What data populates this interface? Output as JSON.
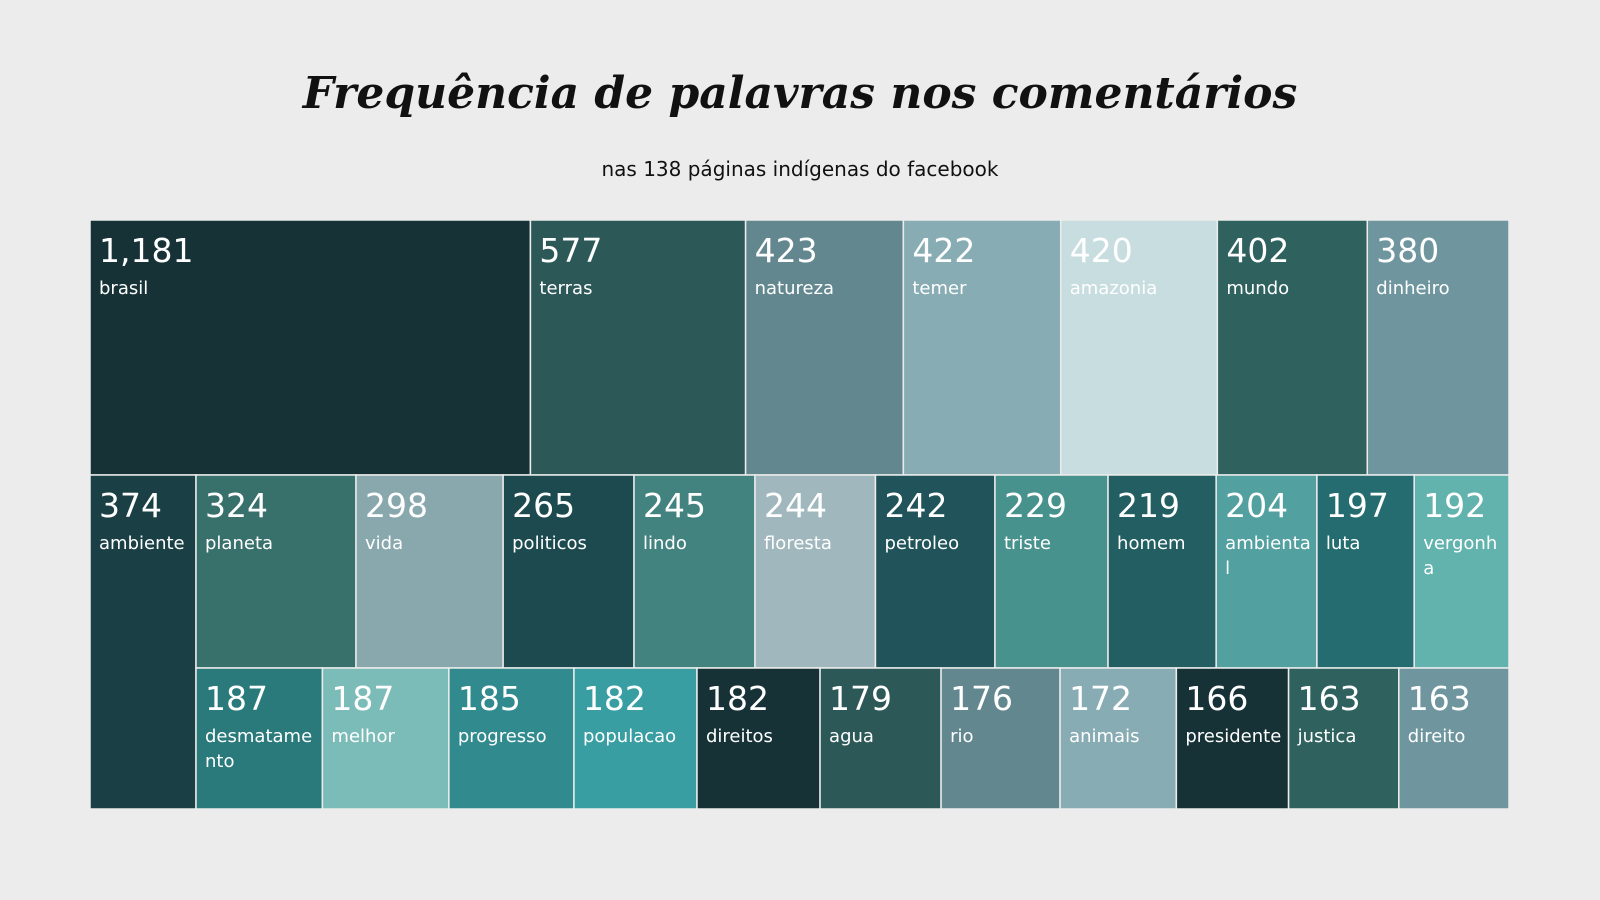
{
  "title": "Frequência de palavras nos comentários",
  "subtitle": "nas 138 páginas indígenas do facebook",
  "chart_data": {
    "type": "treemap",
    "title": "Frequência de palavras nos comentários",
    "subtitle": "nas 138 páginas indígenas do facebook",
    "items": [
      {
        "word": "brasil",
        "value": 1181,
        "value_label": "1,181",
        "lines": [
          "brasil"
        ],
        "color": "#163236"
      },
      {
        "word": "terras",
        "value": 577,
        "value_label": "577",
        "lines": [
          "terras"
        ],
        "color": "#2c5858"
      },
      {
        "word": "natureza",
        "value": 423,
        "value_label": "423",
        "lines": [
          "natureza"
        ],
        "color": "#62878f"
      },
      {
        "word": "temer",
        "value": 422,
        "value_label": "422",
        "lines": [
          "temer"
        ],
        "color": "#88acb4"
      },
      {
        "word": "amazonia",
        "value": 420,
        "value_label": "420",
        "lines": [
          "amazonia"
        ],
        "color": "#c8dde0"
      },
      {
        "word": "mundo",
        "value": 402,
        "value_label": "402",
        "lines": [
          "mundo"
        ],
        "color": "#2f625f"
      },
      {
        "word": "dinheiro",
        "value": 380,
        "value_label": "380",
        "lines": [
          "dinheiro"
        ],
        "color": "#6f969e"
      },
      {
        "word": "ambiente",
        "value": 374,
        "value_label": "374",
        "lines": [
          "ambiente"
        ],
        "color": "#1a4045"
      },
      {
        "word": "planeta",
        "value": 324,
        "value_label": "324",
        "lines": [
          "planeta"
        ],
        "color": "#38706c"
      },
      {
        "word": "vida",
        "value": 298,
        "value_label": "298",
        "lines": [
          "vida"
        ],
        "color": "#88a8ae"
      },
      {
        "word": "politicos",
        "value": 265,
        "value_label": "265",
        "lines": [
          "politicos"
        ],
        "color": "#1c4a4f"
      },
      {
        "word": "lindo",
        "value": 245,
        "value_label": "245",
        "lines": [
          "lindo"
        ],
        "color": "#42827f"
      },
      {
        "word": "floresta",
        "value": 244,
        "value_label": "244",
        "lines": [
          "floresta"
        ],
        "color": "#a0b8bd"
      },
      {
        "word": "petroleo",
        "value": 242,
        "value_label": "242",
        "lines": [
          "petroleo"
        ],
        "color": "#20545a"
      },
      {
        "word": "triste",
        "value": 229,
        "value_label": "229",
        "lines": [
          "triste"
        ],
        "color": "#48928d"
      },
      {
        "word": "homem",
        "value": 219,
        "value_label": "219",
        "lines": [
          "homem"
        ],
        "color": "#225e62"
      },
      {
        "word": "ambiental",
        "value": 204,
        "value_label": "204",
        "lines": [
          "ambienta",
          "l"
        ],
        "color": "#52a0a0"
      },
      {
        "word": "luta",
        "value": 197,
        "value_label": "197",
        "lines": [
          "luta"
        ],
        "color": "#246c70"
      },
      {
        "word": "vergonha",
        "value": 192,
        "value_label": "192",
        "lines": [
          "vergonh",
          "a"
        ],
        "color": "#62b2ae"
      },
      {
        "word": "desmatamento",
        "value": 187,
        "value_label": "187",
        "lines": [
          "desmatame",
          "nto"
        ],
        "color": "#2a7a7c"
      },
      {
        "word": "melhor",
        "value": 187,
        "value_label": "187",
        "lines": [
          "melhor"
        ],
        "color": "#7cbcb8"
      },
      {
        "word": "progresso",
        "value": 185,
        "value_label": "185",
        "lines": [
          "progresso"
        ],
        "color": "#318a8e"
      },
      {
        "word": "populacao",
        "value": 182,
        "value_label": "182",
        "lines": [
          "populacao"
        ],
        "color": "#389ea2"
      },
      {
        "word": "direitos",
        "value": 182,
        "value_label": "182",
        "lines": [
          "direitos"
        ],
        "color": "#163236"
      },
      {
        "word": "agua",
        "value": 179,
        "value_label": "179",
        "lines": [
          "agua"
        ],
        "color": "#2c5858"
      },
      {
        "word": "rio",
        "value": 176,
        "value_label": "176",
        "lines": [
          "rio"
        ],
        "color": "#62878f"
      },
      {
        "word": "animais",
        "value": 172,
        "value_label": "172",
        "lines": [
          "animais"
        ],
        "color": "#88acb4"
      },
      {
        "word": "presidente",
        "value": 166,
        "value_label": "166",
        "lines": [
          "presidente"
        ],
        "color": "#163236"
      },
      {
        "word": "justica",
        "value": 163,
        "value_label": "163",
        "lines": [
          "justica"
        ],
        "color": "#2f625f"
      },
      {
        "word": "direito",
        "value": 163,
        "value_label": "163",
        "lines": [
          "direito"
        ],
        "color": "#6f969e"
      }
    ]
  }
}
